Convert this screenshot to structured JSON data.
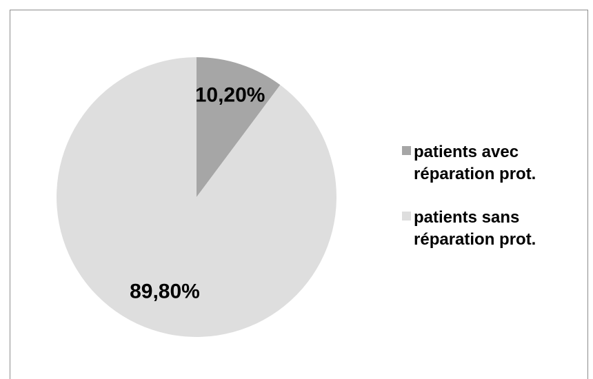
{
  "chart_data": {
    "type": "pie",
    "categories": [
      "patients avec réparation prot.",
      "patients sans réparation prot."
    ],
    "values": [
      10.2,
      89.8
    ],
    "value_labels": [
      "10,20%",
      "89,80%"
    ],
    "colors": [
      "#a6a6a6",
      "#dedede"
    ],
    "legend": "right"
  }
}
